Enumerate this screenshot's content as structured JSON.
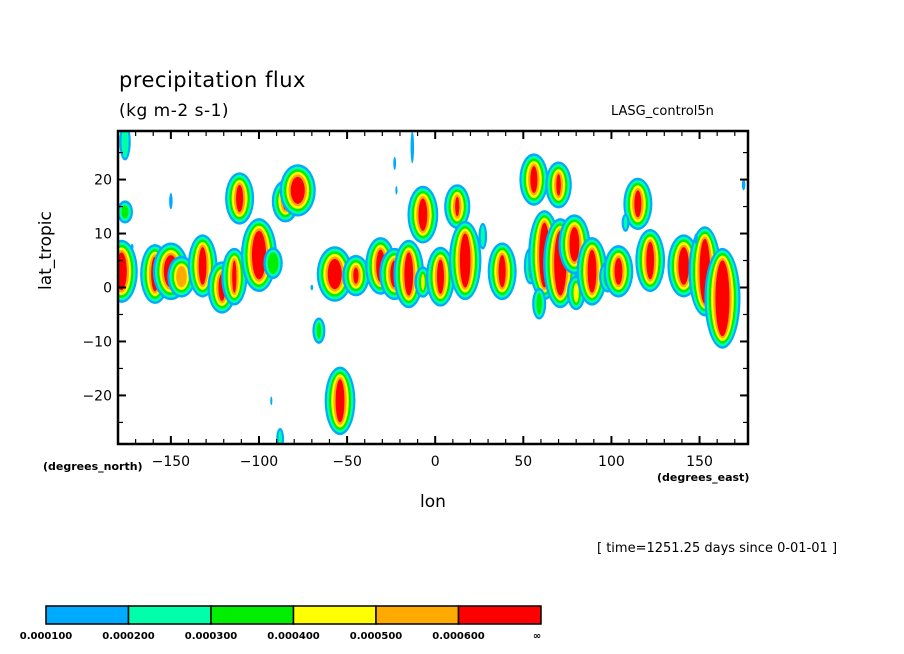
{
  "header": {
    "title": "precipitation flux",
    "units": "(kg m-2 s-1)",
    "dataset": "LASG_control5n"
  },
  "footer": {
    "timestamp": "[ time=1251.25 days since 0-01-01 ]"
  },
  "chart_data": {
    "type": "heatmap",
    "subtype": "filled-contour",
    "title": "precipitation flux",
    "units": "(kg m-2 s-1)",
    "dataset_label": "LASG_control5n",
    "xlabel": "lon",
    "xunits": "(degrees_east)",
    "ylabel": "lat_tropic",
    "yunits": "(degrees_north)",
    "xlim": [
      -180,
      177.5
    ],
    "ylim": [
      -29,
      29
    ],
    "xticks": [
      -150,
      -100,
      -50,
      0,
      50,
      100,
      150
    ],
    "xtick_labels": [
      "−150",
      "−100",
      "−50",
      "0",
      "50",
      "100",
      "150"
    ],
    "yticks": [
      20,
      10,
      0,
      -10,
      -20
    ],
    "ytick_labels": [
      "20",
      "10",
      "0",
      "−10",
      "−20"
    ],
    "grid": false,
    "legend": "bottom colorbar",
    "levels": [
      0.0001,
      0.0002,
      0.0003,
      0.0004,
      0.0005,
      0.0006
    ],
    "colorbar": {
      "colors": [
        "#00aaff",
        "#00ffaa",
        "#00ee00",
        "#ffff00",
        "#ffaa00",
        "#ff0000"
      ],
      "labels": [
        "0.000100",
        "0.000200",
        "0.000300",
        "0.000400",
        "0.000500",
        "0.000600",
        "∞"
      ]
    },
    "features": [
      {
        "lon": -178,
        "lat": 3,
        "rlon": 3,
        "rlat": 3.5,
        "level": 6
      },
      {
        "lon": -176,
        "lat": 27,
        "rlon": 2,
        "rlat": 3,
        "level": 2
      },
      {
        "lon": -176,
        "lat": 14,
        "rlon": 2,
        "rlat": 1.2,
        "level": 3
      },
      {
        "lon": -172,
        "lat": 7.5,
        "rlon": 0.8,
        "rlat": 0.6,
        "level": 1
      },
      {
        "lon": -159,
        "lat": 2.5,
        "rlon": 2.2,
        "rlat": 3.2,
        "level": 6
      },
      {
        "lon": -150,
        "lat": 3,
        "rlon": 4,
        "rlat": 3,
        "level": 6
      },
      {
        "lon": -144,
        "lat": 2,
        "rlon": 3,
        "rlat": 2,
        "level": 5
      },
      {
        "lon": -150,
        "lat": 16,
        "rlon": 1,
        "rlat": 1.5,
        "level": 1
      },
      {
        "lon": -132,
        "lat": 4,
        "rlon": 2.2,
        "rlat": 3.5,
        "level": 6
      },
      {
        "lon": -121,
        "lat": 0,
        "rlon": 2,
        "rlat": 2.5,
        "level": 6
      },
      {
        "lon": -114,
        "lat": 2,
        "rlon": 1.2,
        "rlat": 3,
        "level": 6
      },
      {
        "lon": -111,
        "lat": 16.5,
        "rlon": 2,
        "rlat": 2.5,
        "level": 6
      },
      {
        "lon": -100,
        "lat": 6,
        "rlon": 4,
        "rlat": 4.5,
        "level": 6
      },
      {
        "lon": -92,
        "lat": 4.5,
        "rlon": 3,
        "rlat": 2,
        "level": 3
      },
      {
        "lon": -85,
        "lat": 16,
        "rlon": 1.5,
        "rlat": 1.6,
        "level": 6
      },
      {
        "lon": -78,
        "lat": 18,
        "rlon": 4,
        "rlat": 2.5,
        "level": 6
      },
      {
        "lon": -70,
        "lat": 0,
        "rlon": 0.8,
        "rlat": 0.5,
        "level": 1
      },
      {
        "lon": -66,
        "lat": -8,
        "rlon": 1.2,
        "rlat": 1.5,
        "level": 3
      },
      {
        "lon": -57,
        "lat": 2.5,
        "rlon": 4,
        "rlat": 2.8,
        "level": 6
      },
      {
        "lon": -54,
        "lat": -21,
        "rlon": 2.5,
        "rlat": 4,
        "level": 6
      },
      {
        "lon": -45,
        "lat": 2.2,
        "rlon": 1.5,
        "rlat": 1.5,
        "level": 6
      },
      {
        "lon": -31,
        "lat": 4,
        "rlon": 2.5,
        "rlat": 3,
        "level": 6
      },
      {
        "lon": -23,
        "lat": 2.5,
        "rlon": 2.5,
        "rlat": 2.5,
        "level": 6
      },
      {
        "lon": -15,
        "lat": 2.5,
        "rlon": 2.5,
        "rlat": 4,
        "level": 6
      },
      {
        "lon": -7,
        "lat": 13.5,
        "rlon": 2.5,
        "rlat": 3,
        "level": 6
      },
      {
        "lon": -7,
        "lat": 1,
        "rlon": 1,
        "rlat": 1.5,
        "level": 4
      },
      {
        "lon": 3,
        "lat": 2,
        "rlon": 2,
        "rlat": 3.2,
        "level": 6
      },
      {
        "lon": 12.5,
        "lat": 15,
        "rlon": 1.2,
        "rlat": 1.8,
        "level": 6
      },
      {
        "lon": 17,
        "lat": 5,
        "rlon": 3,
        "rlat": 5,
        "level": 6
      },
      {
        "lon": 27,
        "lat": 9.5,
        "rlon": 1.2,
        "rlat": 2,
        "level": 2
      },
      {
        "lon": 38,
        "lat": 3,
        "rlon": 2,
        "rlat": 3,
        "level": 6
      },
      {
        "lon": -23,
        "lat": 23,
        "rlon": 0.8,
        "rlat": 1.2,
        "level": 1
      },
      {
        "lon": -13,
        "lat": 26,
        "rlon": 1,
        "rlat": 3,
        "level": 1
      },
      {
        "lon": -22,
        "lat": 18,
        "rlon": 0.6,
        "rlat": 0.8,
        "level": 1
      },
      {
        "lon": 56,
        "lat": 20,
        "rlon": 2,
        "rlat": 2.5,
        "level": 6
      },
      {
        "lon": 70,
        "lat": 19,
        "rlon": 1.3,
        "rlat": 2,
        "level": 6
      },
      {
        "lon": 54,
        "lat": 4,
        "rlon": 1.2,
        "rlat": 2.5,
        "level": 3
      },
      {
        "lon": 62,
        "lat": 6,
        "rlon": 3,
        "rlat": 6,
        "level": 6
      },
      {
        "lon": 71,
        "lat": 4.5,
        "rlon": 3.5,
        "rlat": 6,
        "level": 6
      },
      {
        "lon": 79,
        "lat": 8,
        "rlon": 2.8,
        "rlat": 3.2,
        "level": 6
      },
      {
        "lon": 59,
        "lat": -3,
        "rlon": 1.5,
        "rlat": 2,
        "level": 3
      },
      {
        "lon": 80,
        "lat": -1,
        "rlon": 1.5,
        "rlat": 1.8,
        "level": 4
      },
      {
        "lon": 89,
        "lat": 3,
        "rlon": 2.5,
        "rlat": 4,
        "level": 6
      },
      {
        "lon": 98,
        "lat": 2,
        "rlon": 2.5,
        "rlat": 2,
        "level": 3
      },
      {
        "lon": 104,
        "lat": 3,
        "rlon": 2.2,
        "rlat": 2.5,
        "level": 6
      },
      {
        "lon": 115,
        "lat": 15.5,
        "rlon": 2,
        "rlat": 2.5,
        "level": 6
      },
      {
        "lon": 108,
        "lat": 12,
        "rlon": 1,
        "rlat": 1.2,
        "level": 2
      },
      {
        "lon": 122,
        "lat": 5,
        "rlon": 2.2,
        "rlat": 3.5,
        "level": 6
      },
      {
        "lon": 141,
        "lat": 4,
        "rlon": 3,
        "rlat": 3.5,
        "level": 6
      },
      {
        "lon": 153,
        "lat": 3,
        "rlon": 3,
        "rlat": 6,
        "level": 6
      },
      {
        "lon": 163,
        "lat": -2,
        "rlon": 4,
        "rlat": 7,
        "level": 6
      },
      {
        "lon": 148,
        "lat": 9,
        "rlon": 1,
        "rlat": 1,
        "level": 1
      },
      {
        "lon": 175,
        "lat": 19,
        "rlon": 1,
        "rlat": 1,
        "level": 1
      },
      {
        "lon": -88,
        "lat": -28,
        "rlon": 1,
        "rlat": 1.5,
        "level": 2
      },
      {
        "lon": -93,
        "lat": -21,
        "rlon": 0.6,
        "rlat": 0.8,
        "level": 1
      }
    ]
  }
}
